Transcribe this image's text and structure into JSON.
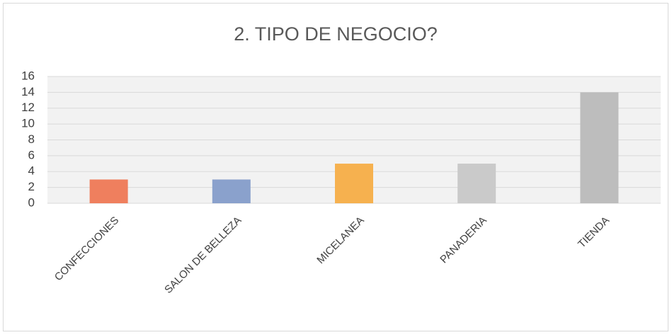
{
  "chart_data": {
    "type": "bar",
    "title": "2. TIPO DE NEGOCIO?",
    "categories": [
      "CONFECCIONES",
      "SALON DE BELLEZA",
      "MICELANEA",
      "PANADERIA",
      "TIENDA"
    ],
    "values": [
      3,
      3,
      5,
      5,
      14
    ],
    "colors": [
      "#ef7f5e",
      "#8aa1cc",
      "#f6b14f",
      "#cacaca",
      "#bdbdbd"
    ],
    "ylim": [
      0,
      16
    ],
    "yticks": [
      0,
      2,
      4,
      6,
      8,
      10,
      12,
      14,
      16
    ],
    "grid": true
  }
}
